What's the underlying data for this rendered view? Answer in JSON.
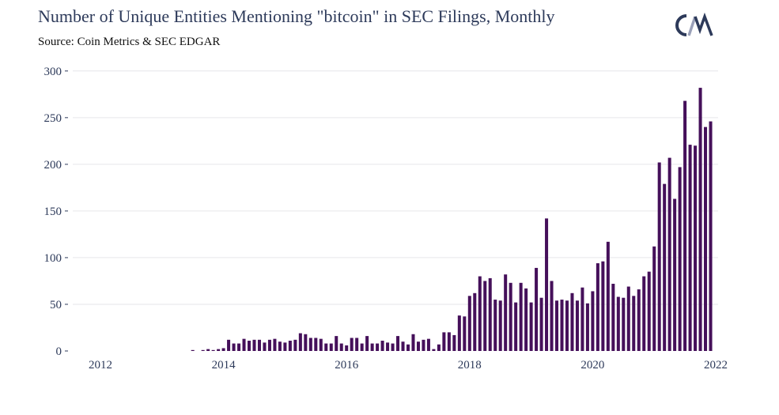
{
  "header": {
    "title": "Number of Unique Entities Mentioning \"bitcoin\" in SEC Filings, Monthly",
    "subtitle": "Source: Coin Metrics & SEC EDGAR",
    "logo_text": "CM"
  },
  "colors": {
    "bar": "#45105a",
    "grid": "#e6e6ea",
    "text": "#2d3a5a"
  },
  "chart_data": {
    "type": "bar",
    "title": "Number of Unique Entities Mentioning \"bitcoin\" in SEC Filings, Monthly",
    "subtitle": "Source: Coin Metrics & SEC EDGAR",
    "xlabel": "",
    "ylabel": "",
    "x_tick_labels": [
      "2012",
      "2014",
      "2016",
      "2018",
      "2020",
      "2022"
    ],
    "y_tick_labels": [
      "0",
      "50",
      "100",
      "150",
      "200",
      "250",
      "300"
    ],
    "ylim": [
      0,
      310
    ],
    "grid": true,
    "start_month": "2011-08",
    "values": [
      0,
      0,
      0,
      0,
      0,
      0,
      0,
      0,
      0,
      0,
      0,
      0,
      0,
      0,
      0,
      0,
      0,
      0,
      0,
      0,
      0,
      0,
      0,
      1,
      0,
      1,
      2,
      1,
      2,
      3,
      12,
      8,
      8,
      13,
      11,
      12,
      12,
      9,
      12,
      13,
      10,
      9,
      11,
      12,
      19,
      18,
      14,
      14,
      13,
      8,
      8,
      16,
      8,
      6,
      14,
      14,
      8,
      16,
      8,
      8,
      11,
      9,
      8,
      16,
      10,
      7,
      18,
      10,
      12,
      13,
      2,
      7,
      20,
      20,
      17,
      38,
      37,
      59,
      62,
      80,
      75,
      78,
      55,
      54,
      82,
      73,
      52,
      73,
      67,
      52,
      89,
      57,
      142,
      75,
      54,
      55,
      54,
      62,
      54,
      68,
      51,
      64,
      94,
      96,
      117,
      72,
      58,
      57,
      69,
      59,
      66,
      80,
      85,
      112,
      202,
      179,
      207,
      163,
      197,
      268,
      221,
      220,
      282,
      240,
      246
    ]
  }
}
